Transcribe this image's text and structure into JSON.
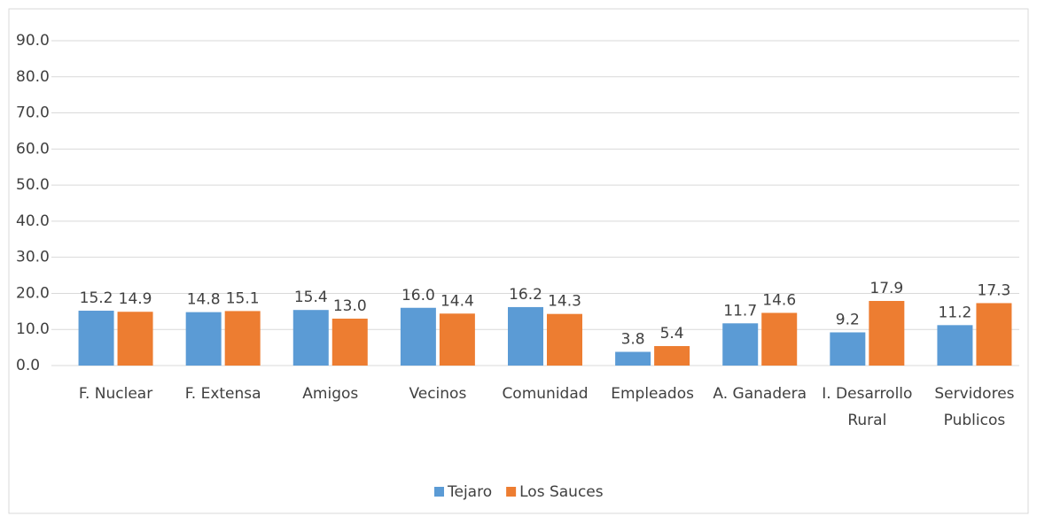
{
  "chart_data": {
    "type": "bar",
    "categories": [
      "F. Nuclear",
      "F. Extensa",
      "Amigos",
      "Vecinos",
      "Comunidad",
      "Empleados",
      "A. Ganadera",
      "I. Desarrollo Rural",
      "Servidores Publicos"
    ],
    "series": [
      {
        "name": "Tejaro",
        "color": "#5b9bd5",
        "values": [
          15.2,
          14.8,
          15.4,
          16.0,
          16.2,
          3.8,
          11.7,
          9.2,
          11.2
        ],
        "value_labels": [
          "15.2",
          "14.8",
          "15.4",
          "16.0",
          "16.2",
          "3.8",
          "11.7",
          "9.2",
          "11.2"
        ]
      },
      {
        "name": "Los Sauces",
        "color": "#ed7d31",
        "values": [
          14.9,
          15.1,
          13.0,
          14.4,
          14.3,
          5.4,
          14.6,
          17.9,
          17.3
        ],
        "value_labels": [
          "14.9",
          "15.1",
          "13.0",
          "14.4",
          "14.3",
          "5.4",
          "14.6",
          "17.9",
          "17.3"
        ]
      }
    ],
    "ylim": [
      0,
      90
    ],
    "yticks": [
      {
        "value": 0,
        "label": "0.0"
      },
      {
        "value": 10,
        "label": "10.0"
      },
      {
        "value": 20,
        "label": "20.0"
      },
      {
        "value": 30,
        "label": "30.0"
      },
      {
        "value": 40,
        "label": "40.0"
      },
      {
        "value": 50,
        "label": "50.0"
      },
      {
        "value": 60,
        "label": "60.0"
      },
      {
        "value": 70,
        "label": "70.0"
      },
      {
        "value": 80,
        "label": "80.0"
      },
      {
        "value": 90,
        "label": "90.0"
      }
    ],
    "grid": true,
    "legend": "bottom"
  }
}
